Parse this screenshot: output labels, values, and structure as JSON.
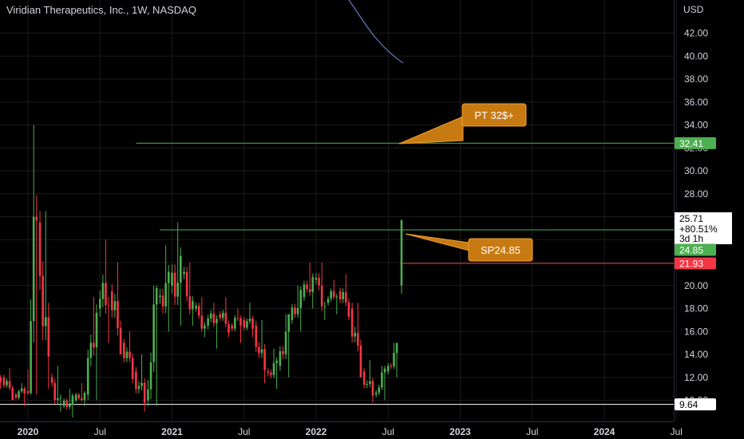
{
  "header": {
    "title": "Viridian Therapeutics, Inc., 1W, NASDAQ"
  },
  "chart_data": {
    "type": "candlestick",
    "currency_label": "USD",
    "y_axis": {
      "ticks": [
        "42.00",
        "40.00",
        "38.00",
        "36.00",
        "34.00",
        "32.00",
        "30.00",
        "28.00",
        "26.00",
        "24.00",
        "22.00",
        "20.00",
        "18.00",
        "16.00",
        "14.00",
        "12.00",
        "10.00"
      ],
      "range": [
        8.6,
        43.5
      ]
    },
    "x_axis": {
      "ticks": [
        "2020",
        "Jul",
        "2021",
        "Jul",
        "2022",
        "Jul",
        "2023",
        "Jul",
        "2024",
        "Jul"
      ],
      "bold_ticks": [
        "2020",
        "2021",
        "2022",
        "2023",
        "2024"
      ],
      "range": [
        "2019-10",
        "2024-07"
      ]
    },
    "last_price": {
      "value": "25.71",
      "change": "+80.51%",
      "countdown": "3d 1h",
      "color": "#26a69a"
    },
    "price_tags": [
      {
        "value": "32.41",
        "color": "#4caf50"
      },
      {
        "value": "24.85",
        "color": "#4caf50"
      },
      {
        "value": "21.93",
        "color": "#f23645"
      },
      {
        "value": "9.64",
        "color": "#ffffff"
      }
    ],
    "levels": [
      {
        "price": 32.41,
        "from": "2020-10",
        "color": "#4caf50"
      },
      {
        "price": 24.85,
        "from": "2020-12",
        "color": "#4caf50"
      },
      {
        "price": 21.93,
        "from": "2022-08",
        "color": "#f23645"
      },
      {
        "price": 9.64,
        "from": "2019-10",
        "color": "#ffffff"
      }
    ],
    "annotations": [
      {
        "text": "PT 32$+",
        "anchor_price": 32.41,
        "anchor_date": "2022-08"
      },
      {
        "text": "SP24.85",
        "anchor_price": 24.85,
        "anchor_date": "2022-08"
      }
    ],
    "colors": {
      "up": "#4caf50",
      "down": "#f23645",
      "grid": "#1a1a1a",
      "callout": "#c77a12",
      "callout_border": "#f0a030",
      "curve": "#5f73b8"
    },
    "candles_approx": [
      {
        "t": "2019-10",
        "o": 12.5,
        "h": 13.5,
        "l": 11.0,
        "c": 12.0
      },
      {
        "t": "2019-11",
        "o": 12.0,
        "h": 12.8,
        "l": 10.0,
        "c": 10.5
      },
      {
        "t": "2019-12",
        "o": 10.5,
        "h": 11.5,
        "l": 9.5,
        "c": 10.8
      },
      {
        "t": "2020-01",
        "o": 10.8,
        "h": 34.0,
        "l": 10.5,
        "c": 25.5
      },
      {
        "t": "2020-02",
        "o": 25.5,
        "h": 26.5,
        "l": 11.0,
        "c": 12.0
      },
      {
        "t": "2020-03",
        "o": 12.0,
        "h": 13.0,
        "l": 9.0,
        "c": 9.5
      },
      {
        "t": "2020-04",
        "o": 9.5,
        "h": 11.0,
        "l": 8.5,
        "c": 10.0
      },
      {
        "t": "2020-05",
        "o": 10.0,
        "h": 11.5,
        "l": 9.5,
        "c": 10.5
      },
      {
        "t": "2020-06",
        "o": 10.5,
        "h": 19.0,
        "l": 10.0,
        "c": 18.0
      },
      {
        "t": "2020-07",
        "o": 18.0,
        "h": 24.0,
        "l": 15.0,
        "c": 19.5
      },
      {
        "t": "2020-08",
        "o": 19.5,
        "h": 22.0,
        "l": 14.0,
        "c": 15.0
      },
      {
        "t": "2020-09",
        "o": 15.0,
        "h": 16.0,
        "l": 11.5,
        "c": 12.5
      },
      {
        "t": "2020-10",
        "o": 12.5,
        "h": 14.0,
        "l": 9.0,
        "c": 10.0
      },
      {
        "t": "2020-11",
        "o": 10.0,
        "h": 20.0,
        "l": 9.5,
        "c": 19.0
      },
      {
        "t": "2020-12",
        "o": 19.0,
        "h": 23.5,
        "l": 16.0,
        "c": 20.0
      },
      {
        "t": "2021-01",
        "o": 20.0,
        "h": 25.5,
        "l": 16.5,
        "c": 21.0
      },
      {
        "t": "2021-02",
        "o": 21.0,
        "h": 22.0,
        "l": 16.5,
        "c": 18.0
      },
      {
        "t": "2021-03",
        "o": 18.0,
        "h": 19.0,
        "l": 15.5,
        "c": 16.5
      },
      {
        "t": "2021-04",
        "o": 16.5,
        "h": 18.5,
        "l": 14.5,
        "c": 17.5
      },
      {
        "t": "2021-05",
        "o": 17.5,
        "h": 19.0,
        "l": 15.5,
        "c": 16.5
      },
      {
        "t": "2021-06",
        "o": 16.5,
        "h": 18.0,
        "l": 15.0,
        "c": 17.0
      },
      {
        "t": "2021-07",
        "o": 17.0,
        "h": 18.5,
        "l": 15.5,
        "c": 16.5
      },
      {
        "t": "2021-08",
        "o": 16.5,
        "h": 17.0,
        "l": 11.5,
        "c": 12.5
      },
      {
        "t": "2021-09",
        "o": 12.5,
        "h": 14.5,
        "l": 11.0,
        "c": 13.0
      },
      {
        "t": "2021-10",
        "o": 13.0,
        "h": 17.5,
        "l": 12.0,
        "c": 17.0
      },
      {
        "t": "2021-11",
        "o": 17.0,
        "h": 20.0,
        "l": 16.0,
        "c": 19.0
      },
      {
        "t": "2021-12",
        "o": 19.0,
        "h": 22.0,
        "l": 18.0,
        "c": 20.5
      },
      {
        "t": "2022-01",
        "o": 20.5,
        "h": 22.0,
        "l": 17.0,
        "c": 18.5
      },
      {
        "t": "2022-02",
        "o": 18.5,
        "h": 20.5,
        "l": 17.5,
        "c": 19.5
      },
      {
        "t": "2022-03",
        "o": 19.5,
        "h": 21.0,
        "l": 17.0,
        "c": 18.0
      },
      {
        "t": "2022-04",
        "o": 18.0,
        "h": 18.5,
        "l": 12.0,
        "c": 12.5
      },
      {
        "t": "2022-05",
        "o": 12.5,
        "h": 13.5,
        "l": 9.8,
        "c": 10.5
      },
      {
        "t": "2022-06",
        "o": 10.5,
        "h": 13.0,
        "l": 10.0,
        "c": 12.5
      },
      {
        "t": "2022-07",
        "o": 12.5,
        "h": 15.0,
        "l": 12.0,
        "c": 14.5
      },
      {
        "t": "2022-08",
        "o": 20.0,
        "h": 25.71,
        "l": 19.3,
        "c": 25.71
      }
    ]
  }
}
